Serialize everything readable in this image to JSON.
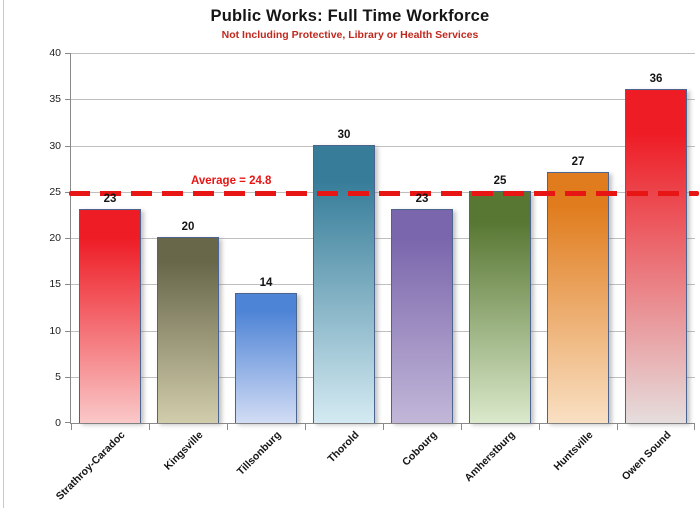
{
  "chart": {
    "title": "Public Works: Full Time Workforce",
    "subtitle": "Not Including Protective, Library or Health Services",
    "average_label": "Average = 24.8"
  },
  "chart_data": {
    "type": "bar",
    "title": "Public Works: Full Time Workforce",
    "subtitle": "Not Including Protective, Library or Health Services",
    "categories": [
      "Strathroy-Caradoc",
      "Kingsville",
      "Tillsonburg",
      "Thorold",
      "Cobourg",
      "Amherstburg",
      "Huntsville",
      "Owen Sound"
    ],
    "values": [
      23,
      20,
      14,
      30,
      23,
      25,
      27,
      36
    ],
    "xlabel": "",
    "ylabel": "",
    "ylim": [
      0,
      40
    ],
    "yticks": [
      0,
      5,
      10,
      15,
      20,
      25,
      30,
      35,
      40
    ],
    "grid": true,
    "legend": "none",
    "average_line": {
      "value": 24.8,
      "label": "Average = 24.8",
      "color": "#e81515",
      "style": "dashed"
    },
    "colors": {
      "grid": "#bfbfbf",
      "axis": "#8a8a8a",
      "bar_border": "#4d648f",
      "title": "#151515",
      "subtitle": "#c0281e",
      "bar_gradients": [
        {
          "top": "#ee1c25",
          "bottom": "#fac8c8"
        },
        {
          "top": "#68674a",
          "bottom": "#d1cdac"
        },
        {
          "top": "#4e84d6",
          "bottom": "#d2dcf4"
        },
        {
          "top": "#377d99",
          "bottom": "#d4eaf2"
        },
        {
          "top": "#7a66ac",
          "bottom": "#c2b7d8"
        },
        {
          "top": "#587733",
          "bottom": "#dae9cb"
        },
        {
          "top": "#e07c1d",
          "bottom": "#f9e0c3"
        },
        {
          "top": "#ee1c25",
          "bottom": "#e6dddd"
        }
      ]
    }
  }
}
